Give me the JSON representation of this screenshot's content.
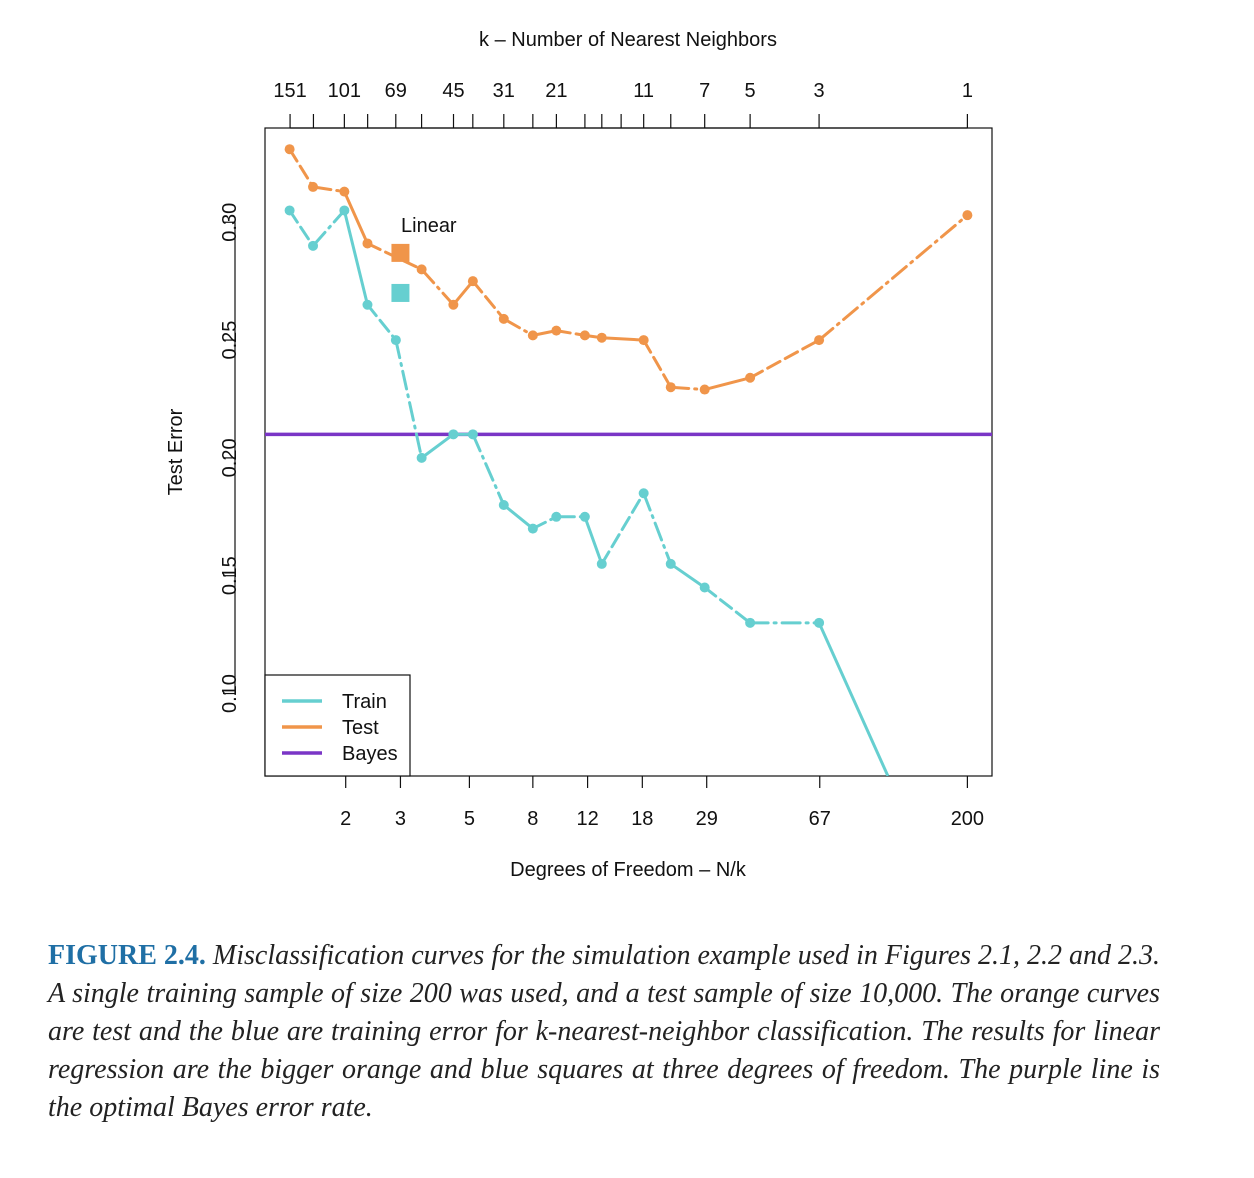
{
  "chart_data": {
    "type": "line",
    "title": "",
    "top_axis_label": "k –  Number of Nearest Neighbors",
    "xlabel": "Degrees of Freedom – N/k",
    "ylabel": "Test Error",
    "x_scale": "log",
    "ylim": [
      0.065,
      0.34
    ],
    "y_ticks": [
      0.1,
      0.15,
      0.2,
      0.25,
      0.3
    ],
    "y_tick_labels": [
      "0.10",
      "0.15",
      "0.20",
      "0.25",
      "0.30"
    ],
    "x_tick_labels": [
      "2",
      "3",
      "5",
      "8",
      "12",
      "18",
      "29",
      "67",
      "200"
    ],
    "x_tick_values": [
      2,
      3,
      5,
      8,
      12,
      18,
      29,
      67,
      200
    ],
    "k_tick_labels": [
      "151",
      "101",
      "69",
      "45",
      "31",
      "21",
      "11",
      "7",
      "5",
      "3",
      "1"
    ],
    "k_values": [
      151,
      101,
      69,
      45,
      31,
      21,
      11,
      7,
      5,
      3,
      1
    ],
    "k_all": [
      151,
      127,
      101,
      85,
      69,
      57,
      45,
      39,
      31,
      25,
      21,
      17,
      15,
      13,
      11,
      9,
      7,
      5,
      3,
      1
    ],
    "n_samples": 200,
    "series": [
      {
        "name": "Train",
        "color": "#66cfd0",
        "x": [
          1.32,
          1.57,
          1.98,
          2.35,
          2.9,
          3.51,
          4.44,
          5.13,
          6.45,
          8.0,
          9.52,
          11.76,
          13.33,
          18.18,
          22.22,
          28.57,
          40.0,
          66.67
        ],
        "y": [
          0.305,
          0.29,
          0.305,
          0.265,
          0.25,
          0.2,
          0.21,
          0.21,
          0.18,
          0.17,
          0.175,
          0.175,
          0.155,
          0.185,
          0.155,
          0.145,
          0.13,
          0.13
        ],
        "extends_to": {
          "x": 111,
          "y": 0.065
        }
      },
      {
        "name": "Test",
        "color": "#f0954a",
        "x": [
          1.32,
          1.57,
          1.98,
          2.35,
          3.51,
          4.44,
          5.13,
          6.45,
          8.0,
          9.52,
          11.76,
          13.33,
          18.18,
          22.22,
          28.57,
          40.0,
          66.67,
          200.0
        ],
        "y": [
          0.331,
          0.315,
          0.313,
          0.291,
          0.28,
          0.265,
          0.275,
          0.259,
          0.252,
          0.254,
          0.252,
          0.251,
          0.25,
          0.23,
          0.229,
          0.234,
          0.25,
          0.303
        ]
      },
      {
        "name": "Bayes",
        "color": "#7a35c6",
        "y": 0.21
      }
    ],
    "linear_points": [
      {
        "series": "Test",
        "x": 3,
        "y": 0.287,
        "color": "#f0954a"
      },
      {
        "series": "Train",
        "x": 3,
        "y": 0.27,
        "color": "#66cfd0"
      }
    ],
    "annotation": "Linear",
    "legend": {
      "position": "bottom-left",
      "entries": [
        "Train",
        "Test",
        "Bayes"
      ]
    }
  },
  "caption": {
    "label": "FIGURE 2.4.",
    "text": "Misclassification curves for the simulation example used in Figures 2.1, 2.2 and 2.3. A single training sample of size 200 was used, and a test sample of size 10,000. The orange curves are test and the blue are training error for k-nearest-neighbor classification. The results for linear regression are the bigger orange and blue squares at three degrees of freedom. The purple line is the optimal Bayes error rate."
  }
}
